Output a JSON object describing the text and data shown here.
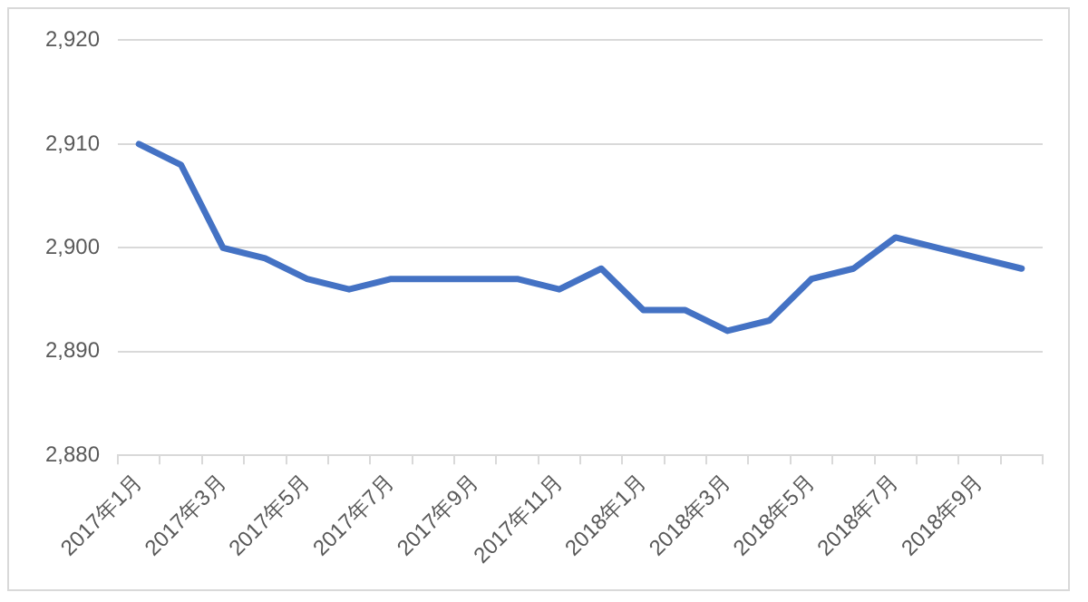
{
  "chart_data": {
    "type": "line",
    "categories": [
      "2017年1月",
      null,
      "2017年3月",
      null,
      "2017年5月",
      null,
      "2017年7月",
      null,
      "2017年9月",
      null,
      "2017年11月",
      null,
      "2018年1月",
      null,
      "2018年3月",
      null,
      "2018年5月",
      null,
      "2018年7月",
      null,
      "2018年9月",
      null
    ],
    "series": [
      {
        "color": "#4472c4",
        "values": [
          2910,
          2908,
          2900,
          2899,
          2897,
          2896,
          2897,
          2897,
          2897,
          2897,
          2896,
          2898,
          2894,
          2894,
          2892,
          2893,
          2897,
          2898,
          2901,
          2900,
          2899,
          2898
        ]
      }
    ],
    "ylim": [
      2880,
      2920
    ],
    "yticks": [
      {
        "value": 2880,
        "label": "2,880"
      },
      {
        "value": 2890,
        "label": "2,890"
      },
      {
        "value": 2900,
        "label": "2,900"
      },
      {
        "value": 2910,
        "label": "2,910"
      },
      {
        "value": 2920,
        "label": "2,920"
      }
    ],
    "grid": "y",
    "legend": false,
    "marker": "none",
    "line_style": "solid"
  }
}
